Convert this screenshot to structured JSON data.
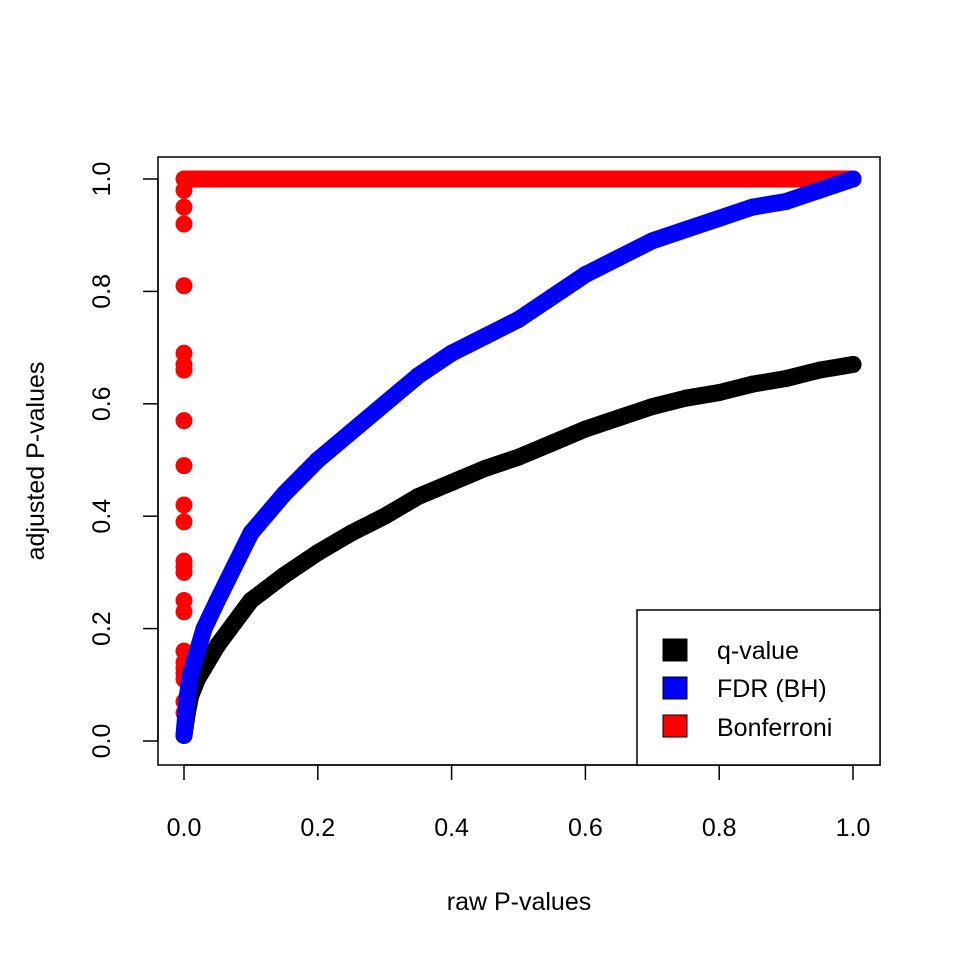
{
  "chart_data": {
    "type": "scatter",
    "title": "",
    "xlabel": "raw P-values",
    "ylabel": "adjusted P-values",
    "xlim": [
      0,
      1
    ],
    "ylim": [
      0,
      1
    ],
    "xticks": [
      "0.0",
      "0.2",
      "0.4",
      "0.6",
      "0.8",
      "1.0"
    ],
    "yticks": [
      "0.0",
      "0.2",
      "0.4",
      "0.6",
      "0.8",
      "1.0"
    ],
    "grid": false,
    "legend_position": "bottom-right",
    "series": [
      {
        "name": "q-value",
        "color": "#000000",
        "x": [
          0,
          0.005,
          0.01,
          0.02,
          0.03,
          0.05,
          0.075,
          0.1,
          0.15,
          0.2,
          0.25,
          0.3,
          0.35,
          0.4,
          0.45,
          0.5,
          0.55,
          0.6,
          0.65,
          0.7,
          0.75,
          0.8,
          0.85,
          0.9,
          0.95,
          1.0
        ],
        "y": [
          0.01,
          0.05,
          0.08,
          0.11,
          0.13,
          0.17,
          0.21,
          0.25,
          0.295,
          0.335,
          0.37,
          0.4,
          0.435,
          0.46,
          0.485,
          0.505,
          0.53,
          0.555,
          0.575,
          0.595,
          0.61,
          0.62,
          0.635,
          0.645,
          0.66,
          0.67
        ]
      },
      {
        "name": "FDR (BH)",
        "color": "#0000FF",
        "x": [
          0,
          0.005,
          0.01,
          0.02,
          0.03,
          0.05,
          0.075,
          0.1,
          0.15,
          0.2,
          0.25,
          0.3,
          0.35,
          0.4,
          0.45,
          0.5,
          0.55,
          0.6,
          0.65,
          0.7,
          0.75,
          0.8,
          0.85,
          0.9,
          0.95,
          1.0
        ],
        "y": [
          0.01,
          0.08,
          0.12,
          0.16,
          0.2,
          0.25,
          0.31,
          0.37,
          0.44,
          0.5,
          0.55,
          0.6,
          0.65,
          0.69,
          0.72,
          0.75,
          0.79,
          0.83,
          0.86,
          0.89,
          0.91,
          0.93,
          0.95,
          0.96,
          0.98,
          1.0
        ]
      },
      {
        "name": "Bonferroni",
        "color": "#FF0000",
        "x": [
          0,
          0,
          0,
          0,
          0,
          0,
          0,
          0,
          0,
          0,
          0,
          0,
          0,
          0,
          0,
          0,
          0,
          0,
          0,
          0,
          0,
          0,
          0,
          0.05,
          0.1,
          0.15,
          0.2,
          0.25,
          0.3,
          0.35,
          0.4,
          0.45,
          0.5,
          0.55,
          0.6,
          0.65,
          0.7,
          0.75,
          0.8,
          0.85,
          0.9,
          0.95,
          1.0
        ],
        "y": [
          0.05,
          0.07,
          0.11,
          0.12,
          0.13,
          0.14,
          0.16,
          0.23,
          0.25,
          0.3,
          0.31,
          0.32,
          0.39,
          0.42,
          0.49,
          0.57,
          0.66,
          0.67,
          0.69,
          0.81,
          0.92,
          0.95,
          0.98,
          1.0,
          1.0,
          1.0,
          1.0,
          1.0,
          1.0,
          1.0,
          1.0,
          1.0,
          1.0,
          1.0,
          1.0,
          1.0,
          1.0,
          1.0,
          1.0,
          1.0,
          1.0,
          1.0,
          1.0
        ]
      }
    ]
  }
}
